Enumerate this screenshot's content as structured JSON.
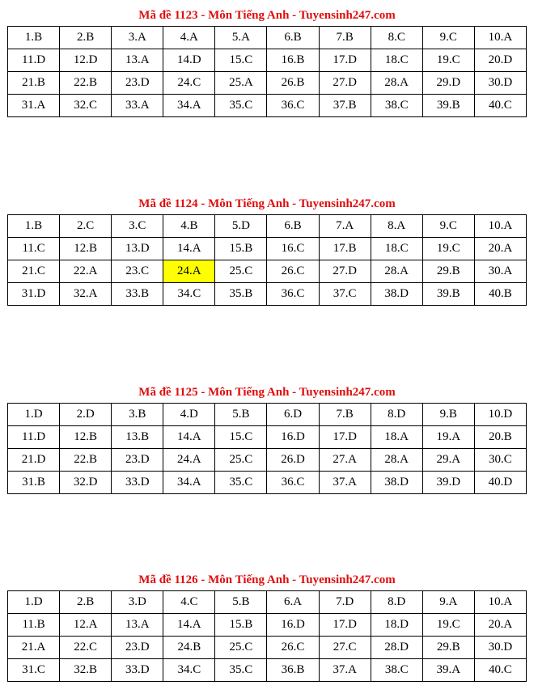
{
  "sections": [
    {
      "title": "Mã đề 1123 - Môn Tiếng Anh - Tuyensinh247.com",
      "answers": [
        "1.B",
        "2.B",
        "3.A",
        "4.A",
        "5.A",
        "6.B",
        "7.B",
        "8.C",
        "9.C",
        "10.A",
        "11.D",
        "12.D",
        "13.A",
        "14.D",
        "15.C",
        "16.B",
        "17.D",
        "18.C",
        "19.C",
        "20.D",
        "21.B",
        "22.B",
        "23.D",
        "24.C",
        "25.A",
        "26.B",
        "27.D",
        "28.A",
        "29.D",
        "30.D",
        "31.A",
        "32.C",
        "33.A",
        "34.A",
        "35.C",
        "36.C",
        "37.B",
        "38.C",
        "39.B",
        "40.C"
      ],
      "highlighted": []
    },
    {
      "title": "Mã đề 1124 - Môn Tiếng Anh - Tuyensinh247.com",
      "answers": [
        "1.B",
        "2.C",
        "3.C",
        "4.B",
        "5.D",
        "6.B",
        "7.A",
        "8.A",
        "9.C",
        "10.A",
        "11.C",
        "12.B",
        "13.D",
        "14.A",
        "15.B",
        "16.C",
        "17.B",
        "18.C",
        "19.C",
        "20.A",
        "21.C",
        "22.A",
        "23.C",
        "24.A",
        "25.C",
        "26.C",
        "27.D",
        "28.A",
        "29.B",
        "30.A",
        "31.D",
        "32.A",
        "33.B",
        "34.C",
        "35.B",
        "36.C",
        "37.C",
        "38.D",
        "39.B",
        "40.B"
      ],
      "highlighted": [
        "24.A"
      ]
    },
    {
      "title": "Mã đề 1125 - Môn Tiếng Anh - Tuyensinh247.com",
      "answers": [
        "1.D",
        "2.D",
        "3.B",
        "4.D",
        "5.B",
        "6.D",
        "7.B",
        "8.D",
        "9.B",
        "10.D",
        "11.D",
        "12.B",
        "13.B",
        "14.A",
        "15.C",
        "16.D",
        "17.D",
        "18.A",
        "19.A",
        "20.B",
        "21.D",
        "22.B",
        "23.D",
        "24.A",
        "25.C",
        "26.D",
        "27.A",
        "28.A",
        "29.A",
        "30.C",
        "31.B",
        "32.D",
        "33.D",
        "34.A",
        "35.C",
        "36.C",
        "37.A",
        "38.D",
        "39.D",
        "40.D"
      ],
      "highlighted": []
    },
    {
      "title": "Mã đề 1126 - Môn Tiếng Anh - Tuyensinh247.com",
      "answers": [
        "1.D",
        "2.B",
        "3.D",
        "4.C",
        "5.B",
        "6.A",
        "7.D",
        "8.D",
        "9.A",
        "10.A",
        "11.B",
        "12.A",
        "13.A",
        "14.A",
        "15.B",
        "16.D",
        "17.D",
        "18.D",
        "19.C",
        "20.A",
        "21.A",
        "22.C",
        "23.D",
        "24.B",
        "25.C",
        "26.C",
        "27.C",
        "28.D",
        "29.B",
        "30.D",
        "31.C",
        "32.B",
        "33.D",
        "34.C",
        "35.C",
        "36.B",
        "37.A",
        "38.C",
        "39.A",
        "40.C"
      ],
      "highlighted": []
    }
  ],
  "colors": {
    "title": "#e00d0d",
    "highlight": "#ffff00"
  }
}
